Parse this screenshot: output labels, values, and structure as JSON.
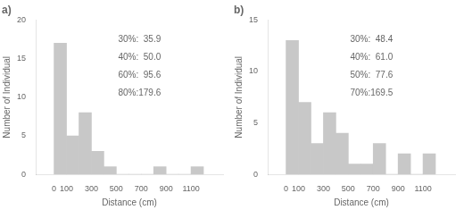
{
  "chart_data": [
    {
      "type": "histogram",
      "title": "a)",
      "bins": [
        0,
        100,
        200,
        300,
        400,
        500,
        600,
        700,
        800,
        900,
        1000,
        1100,
        1200
      ],
      "values": [
        17,
        5,
        8,
        3,
        1,
        0,
        0,
        0,
        1,
        0,
        0,
        1
      ],
      "color": "#c8c8c8",
      "xlim": [
        -40,
        1250
      ],
      "xticks": [
        0,
        100,
        300,
        500,
        700,
        900,
        1100
      ],
      "ylim": [
        0,
        20
      ],
      "yticks": [
        0,
        5,
        10,
        15,
        20
      ],
      "xlabel": "Distance (cm)",
      "ylabel": "Number of Individual",
      "annotations": [
        "30%:  35.9",
        "40%:  50.0",
        "60%:  95.6",
        "80%:179.6"
      ],
      "grid": false
    },
    {
      "type": "histogram",
      "title": "b)",
      "bins": [
        0,
        100,
        200,
        300,
        400,
        500,
        600,
        700,
        800,
        900,
        1000,
        1100,
        1200
      ],
      "values": [
        13,
        7,
        3,
        6,
        4,
        1,
        1,
        3,
        0,
        2,
        0,
        2
      ],
      "color": "#c8c8c8",
      "xlim": [
        -40,
        1250
      ],
      "xticks": [
        0,
        100,
        300,
        500,
        700,
        900,
        1100
      ],
      "ylim": [
        0,
        15
      ],
      "yticks": [
        0,
        5,
        10,
        15
      ],
      "xlabel": "Distance (cm)",
      "ylabel": "Number of Individual",
      "annotations": [
        "30%:  48.4",
        "40%:  61.0",
        "50%:  77.6",
        "70%:169.5"
      ],
      "grid": false
    }
  ]
}
